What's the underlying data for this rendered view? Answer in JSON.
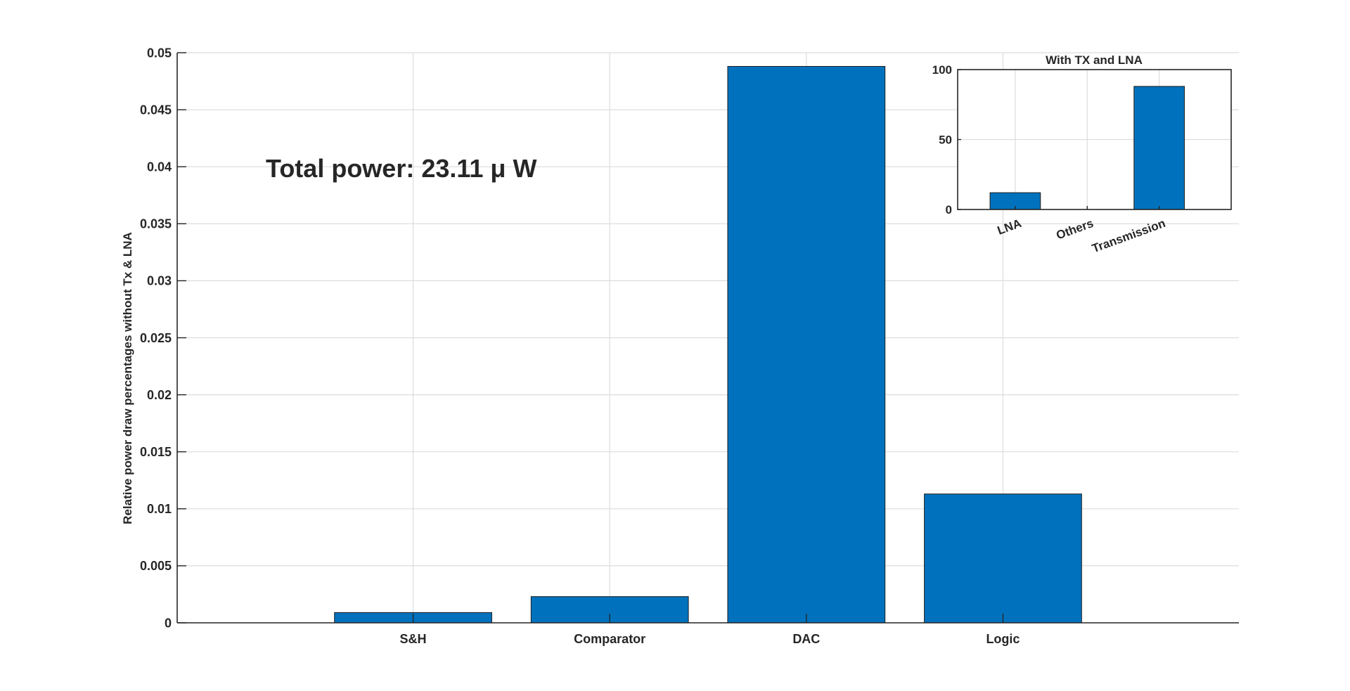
{
  "chart_data": [
    {
      "type": "bar",
      "title": "",
      "xlabel": "",
      "ylabel": "Relative power draw percentages without Tx & LNA",
      "categories": [
        "S&H",
        "Comparator",
        "DAC",
        "Logic"
      ],
      "values": [
        0.0009,
        0.0023,
        0.0488,
        0.0113
      ],
      "ylim": [
        0,
        0.05
      ],
      "yticks": [
        0,
        0.005,
        0.01,
        0.015,
        0.02,
        0.025,
        0.03,
        0.035,
        0.04,
        0.045,
        0.05
      ],
      "ytick_labels": [
        "0",
        "0.005",
        "0.01",
        "0.015",
        "0.02",
        "0.025",
        "0.03",
        "0.035",
        "0.04",
        "0.045",
        "0.05"
      ],
      "xlim": [
        -0.2,
        5.2
      ],
      "x": [
        1,
        2,
        3,
        4
      ],
      "grid": true,
      "bar_color": "#0072BD",
      "annotation": "Total power: 23.11 μ W"
    },
    {
      "type": "bar",
      "title": "With TX and LNA",
      "xlabel": "",
      "ylabel": "",
      "categories": [
        "LNA",
        "Others",
        "Transmission"
      ],
      "values": [
        12,
        0,
        88
      ],
      "ylim": [
        0,
        100
      ],
      "yticks": [
        0,
        50,
        100
      ],
      "ytick_labels": [
        "0",
        "50",
        "100"
      ],
      "xlim": [
        0.5,
        4.3
      ],
      "x": [
        1.3,
        2.3,
        3.3
      ],
      "grid": true,
      "bar_color": "#0072BD"
    }
  ]
}
